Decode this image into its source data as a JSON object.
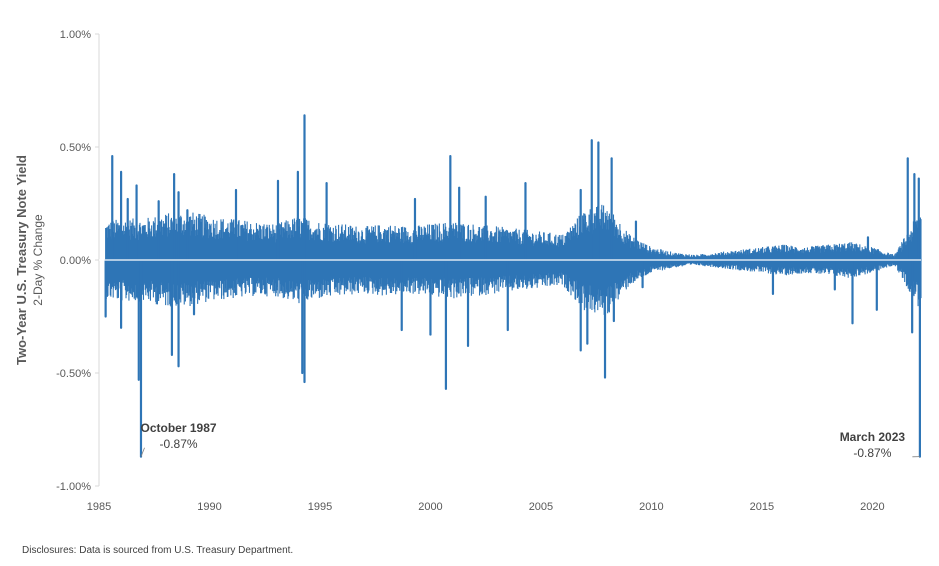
{
  "chart_data": {
    "type": "area",
    "ylabel": "Two-Year U.S. Treasury Note Yield",
    "ylabel_sub": "2-Day % Change",
    "ylim": [
      -1.0,
      1.0
    ],
    "y_ticks": [
      1.0,
      0.5,
      0.0,
      -0.5,
      -1.0
    ],
    "y_tick_labels": [
      "1.00%",
      "0.50%",
      "0.00%",
      "-0.50%",
      "-1.00%"
    ],
    "xlim": [
      1985,
      2022.2
    ],
    "x_ticks": [
      1985,
      1990,
      1995,
      2000,
      2005,
      2010,
      2015,
      2020
    ],
    "x_tick_labels": [
      "1985",
      "1990",
      "1995",
      "2000",
      "2005",
      "2010",
      "2015",
      "2020"
    ],
    "series_color": "#2E75B6",
    "series": [
      {
        "name": "",
        "envelope": {
          "x": [
            1985.3,
            1986,
            1987,
            1988,
            1989,
            1990,
            1991,
            1992,
            1993,
            1994,
            1995,
            1996,
            1997,
            1998,
            1999,
            2000,
            2001,
            2002,
            2003,
            2004,
            2005,
            2006,
            2007,
            2008,
            2009,
            2010,
            2011,
            2012,
            2013,
            2014,
            2015,
            2016,
            2017,
            2018,
            2019,
            2020,
            2021,
            2022.2
          ],
          "upper": [
            0.15,
            0.16,
            0.16,
            0.18,
            0.19,
            0.17,
            0.16,
            0.15,
            0.14,
            0.17,
            0.15,
            0.14,
            0.13,
            0.14,
            0.13,
            0.14,
            0.15,
            0.14,
            0.13,
            0.12,
            0.11,
            0.1,
            0.2,
            0.22,
            0.1,
            0.05,
            0.03,
            0.02,
            0.03,
            0.04,
            0.05,
            0.06,
            0.05,
            0.06,
            0.07,
            0.05,
            0.02,
            0.2
          ],
          "lower": [
            -0.15,
            -0.16,
            -0.16,
            -0.18,
            -0.18,
            -0.16,
            -0.15,
            -0.14,
            -0.14,
            -0.17,
            -0.15,
            -0.14,
            -0.13,
            -0.14,
            -0.13,
            -0.14,
            -0.15,
            -0.14,
            -0.13,
            -0.12,
            -0.11,
            -0.1,
            -0.2,
            -0.22,
            -0.1,
            -0.05,
            -0.03,
            -0.02,
            -0.03,
            -0.04,
            -0.05,
            -0.06,
            -0.05,
            -0.06,
            -0.07,
            -0.05,
            -0.02,
            -0.2
          ]
        },
        "spikes": [
          {
            "x": 1985.6,
            "y": 0.46
          },
          {
            "x": 1986.0,
            "y": 0.39
          },
          {
            "x": 1986.3,
            "y": 0.27
          },
          {
            "x": 1986.7,
            "y": 0.33
          },
          {
            "x": 1987.7,
            "y": 0.26
          },
          {
            "x": 1988.4,
            "y": 0.38
          },
          {
            "x": 1988.6,
            "y": 0.3
          },
          {
            "x": 1989.0,
            "y": 0.22
          },
          {
            "x": 1991.2,
            "y": 0.31
          },
          {
            "x": 1993.1,
            "y": 0.35
          },
          {
            "x": 1994.3,
            "y": 0.64
          },
          {
            "x": 1994.0,
            "y": 0.39
          },
          {
            "x": 1995.3,
            "y": 0.34
          },
          {
            "x": 1999.3,
            "y": 0.27
          },
          {
            "x": 2000.9,
            "y": 0.46
          },
          {
            "x": 2001.3,
            "y": 0.32
          },
          {
            "x": 2002.5,
            "y": 0.28
          },
          {
            "x": 2004.3,
            "y": 0.34
          },
          {
            "x": 2006.8,
            "y": 0.31
          },
          {
            "x": 2007.3,
            "y": 0.53
          },
          {
            "x": 2007.6,
            "y": 0.52
          },
          {
            "x": 2008.2,
            "y": 0.45
          },
          {
            "x": 2009.3,
            "y": 0.17
          },
          {
            "x": 2019.8,
            "y": 0.1
          },
          {
            "x": 2021.6,
            "y": 0.45
          },
          {
            "x": 2021.9,
            "y": 0.38
          },
          {
            "x": 2022.1,
            "y": 0.36
          },
          {
            "x": 1985.3,
            "y": -0.25
          },
          {
            "x": 1986.0,
            "y": -0.3
          },
          {
            "x": 1986.8,
            "y": -0.53
          },
          {
            "x": 1986.9,
            "y": -0.87
          },
          {
            "x": 1988.3,
            "y": -0.42
          },
          {
            "x": 1988.6,
            "y": -0.47
          },
          {
            "x": 1989.3,
            "y": -0.24
          },
          {
            "x": 1994.3,
            "y": -0.54
          },
          {
            "x": 1994.2,
            "y": -0.5
          },
          {
            "x": 1998.7,
            "y": -0.31
          },
          {
            "x": 2000.0,
            "y": -0.33
          },
          {
            "x": 2000.7,
            "y": -0.57
          },
          {
            "x": 2001.7,
            "y": -0.38
          },
          {
            "x": 2003.5,
            "y": -0.31
          },
          {
            "x": 2006.8,
            "y": -0.4
          },
          {
            "x": 2007.1,
            "y": -0.37
          },
          {
            "x": 2007.9,
            "y": -0.52
          },
          {
            "x": 2008.3,
            "y": -0.27
          },
          {
            "x": 2009.6,
            "y": -0.12
          },
          {
            "x": 2015.5,
            "y": -0.15
          },
          {
            "x": 2018.3,
            "y": -0.13
          },
          {
            "x": 2019.1,
            "y": -0.28
          },
          {
            "x": 2020.2,
            "y": -0.22
          },
          {
            "x": 2021.8,
            "y": -0.32
          },
          {
            "x": 2022.15,
            "y": -0.87
          }
        ]
      }
    ],
    "annotations": [
      {
        "title": "October 1987",
        "value": "-0.87%",
        "x": 1986.9,
        "y": -0.87,
        "text_x": 1988.6,
        "text_y": -0.76
      },
      {
        "title": "March 2023",
        "value": "-0.87%",
        "x": 2022.15,
        "y": -0.87,
        "text_x": 2020.0,
        "text_y": -0.8
      }
    ]
  },
  "footer": {
    "disclosure": "Disclosures: Data is sourced from U.S. Treasury Department."
  }
}
